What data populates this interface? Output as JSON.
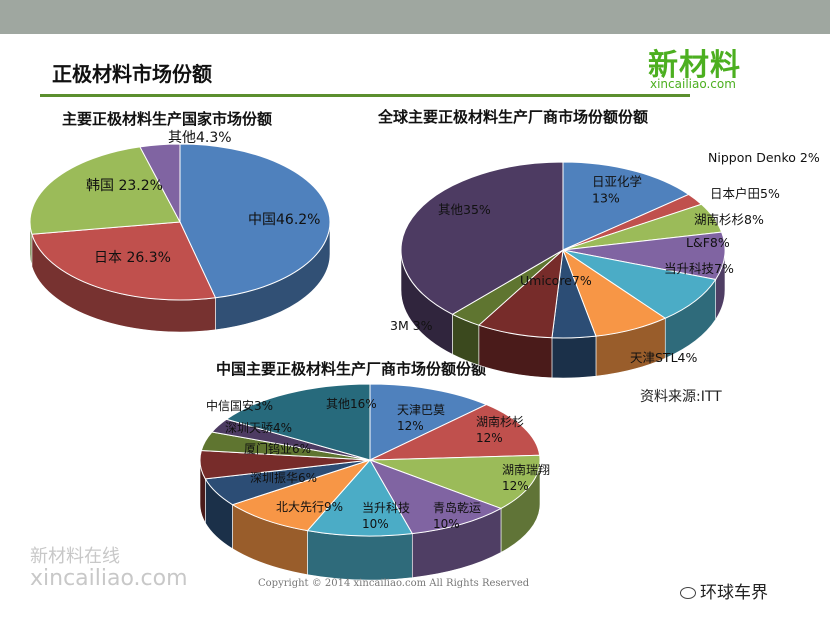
{
  "page": {
    "title": "正极材料市场份额",
    "logo_main": "新材料",
    "logo_sub": "xincailiao.com",
    "source": "资料来源:ITT",
    "watermark_cn": "新材料在线",
    "watermark_en": "xincailiao.com",
    "copyright": "Copyright © 2014    xincailiao.com    All Rights Reserved",
    "wechat_label": "环球车界"
  },
  "chart_data": [
    {
      "type": "pie",
      "title": "主要正极材料生产国家市场份额",
      "labels": [
        "中国",
        "日本",
        "韩国",
        "其他"
      ],
      "values": [
        46.2,
        26.3,
        23.2,
        4.3
      ],
      "display_labels": [
        "中国46.2%",
        "日本 26.3%",
        "韩国 23.2%",
        "其他4.3%"
      ],
      "colors": [
        "#4f81bd",
        "#c0504d",
        "#9bbb59",
        "#8064a2"
      ]
    },
    {
      "type": "pie",
      "title": "全球主要正极材料生产厂商市场份额份额",
      "labels": [
        "日亚化学",
        "Nippon Denko",
        "日本户田",
        "湖南杉杉",
        "L&F",
        "当升科技",
        "天津STL",
        "Umicore",
        "3M",
        "其他"
      ],
      "values": [
        13,
        2,
        5,
        8,
        8,
        7,
        4,
        7,
        3,
        35
      ],
      "display_labels": [
        "日亚化学\n13%",
        "Nippon Denko 2%",
        "日本户田5%",
        "湖南杉杉8%",
        "L&F8%",
        "当升科技7%",
        "天津STL4%",
        "Umicore7%",
        "3M 3%",
        "其他35%"
      ],
      "colors": [
        "#4f81bd",
        "#c0504d",
        "#9bbb59",
        "#8064a2",
        "#4bacc6",
        "#f79646",
        "#2c4d75",
        "#772c2a",
        "#5f7530",
        "#4d3b62"
      ]
    },
    {
      "type": "pie",
      "title": "中国主要正极材料生产厂商市场份额份额",
      "labels": [
        "天津巴莫",
        "湖南杉杉",
        "湖南瑞翔",
        "青岛乾运",
        "当升科技",
        "北大先行",
        "深圳振华",
        "厦门钨业",
        "深圳天骄",
        "中信国安",
        "其他"
      ],
      "values": [
        12,
        12,
        12,
        10,
        10,
        9,
        6,
        6,
        4,
        3,
        16
      ],
      "display_labels": [
        "天津巴莫\n12%",
        "湖南杉杉\n12%",
        "湖南瑞翔\n12%",
        "青岛乾运\n10%",
        "当升科技\n10%",
        "北大先行9%",
        "深圳振华6%",
        "厦门钨业6%",
        "深圳天骄4%",
        "中信国安3%",
        "其他16%"
      ],
      "colors": [
        "#4f81bd",
        "#c0504d",
        "#9bbb59",
        "#8064a2",
        "#4bacc6",
        "#f79646",
        "#2c4d75",
        "#772c2a",
        "#5f7530",
        "#4d3b62",
        "#276a7c"
      ]
    }
  ]
}
